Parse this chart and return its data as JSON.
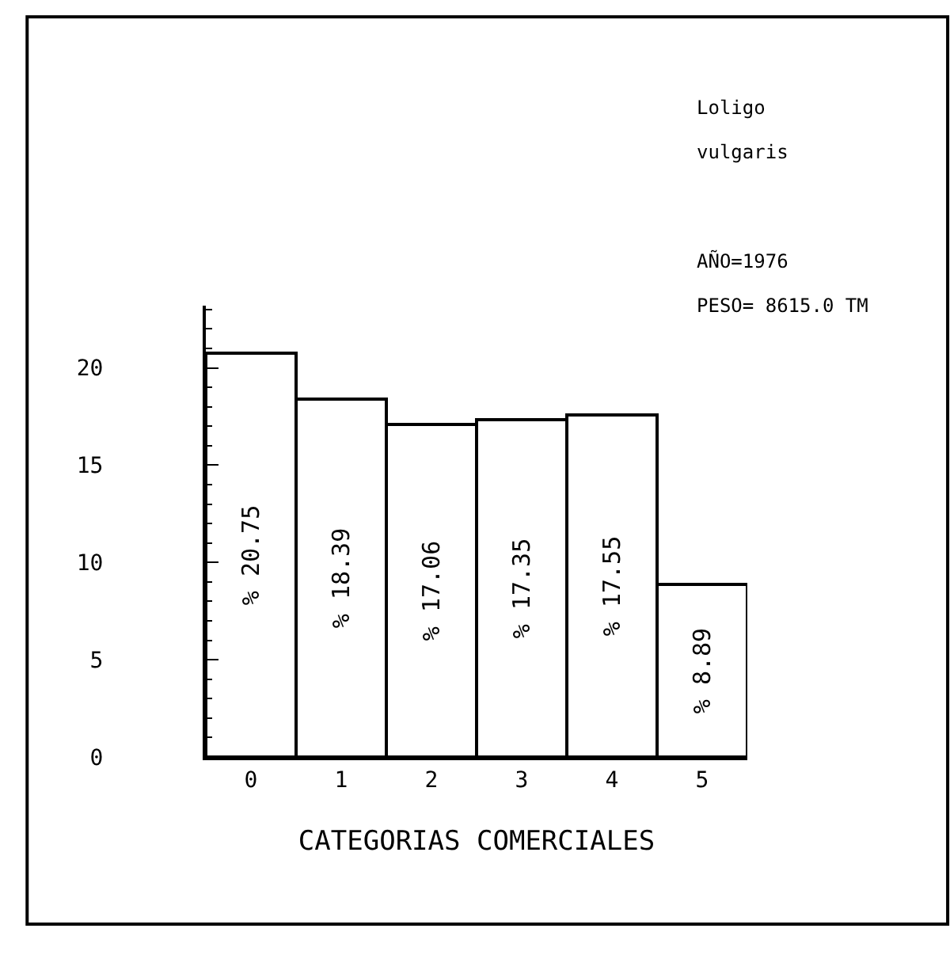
{
  "chart_data": {
    "type": "bar",
    "xlabel": "CATEGORIAS COMERCIALES",
    "categories": [
      "0",
      "1",
      "2",
      "3",
      "4",
      "5"
    ],
    "values": [
      20.75,
      18.39,
      17.06,
      17.35,
      17.55,
      8.89
    ],
    "value_labels": [
      "% 20.75",
      "% 18.39",
      "% 17.06",
      "% 17.35",
      "% 17.55",
      "% 8.89"
    ],
    "color": "#ffffff",
    "ylim": [
      0,
      23.2
    ],
    "yticks": [
      0,
      5,
      10,
      15,
      20
    ],
    "annotations": [
      "Loligo",
      "vulgaris",
      "AÑO=1976",
      "PESO= 8615.0 TM"
    ]
  }
}
